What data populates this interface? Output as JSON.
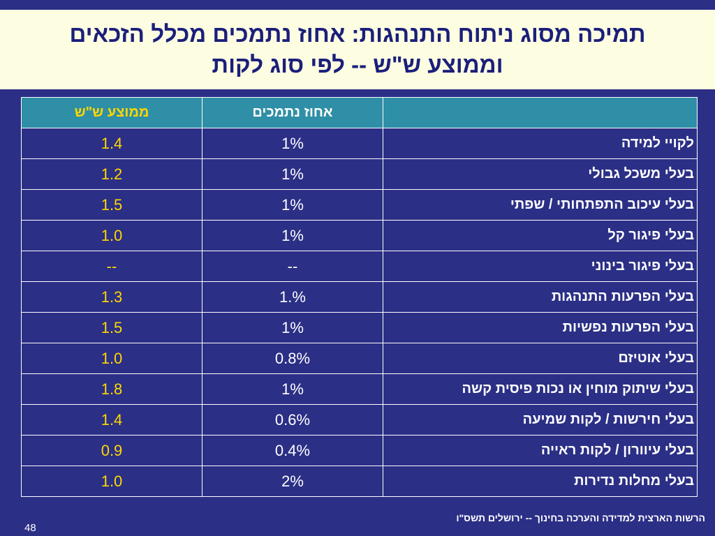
{
  "title": {
    "line1": "תמיכה מסוג ניתוח התנהגות: אחוז נתמכים מכלל הזכאים",
    "line2": "וממוצע ש\"ש -- לפי סוג לקות"
  },
  "table": {
    "headers": {
      "category": "",
      "percent": "אחוז נתמכים",
      "average": "ממוצע ש\"ש"
    },
    "rows": [
      {
        "category": "לקויי למידה",
        "percent": "1%",
        "average": "1.4"
      },
      {
        "category": "בעלי משכל גבולי",
        "percent": "1%",
        "average": "1.2"
      },
      {
        "category": "בעלי עיכוב התפתחותי / שפתי",
        "percent": "1%",
        "average": "1.5"
      },
      {
        "category": "בעלי פיגור קל",
        "percent": "1%",
        "average": "1.0"
      },
      {
        "category": "בעלי פיגור בינוני",
        "percent": "--",
        "average": "--"
      },
      {
        "category": "בעלי הפרעות התנהגות",
        "percent": "%.1",
        "average": "1.3"
      },
      {
        "category": "בעלי הפרעות נפשיות",
        "percent": "1%",
        "average": "1.5"
      },
      {
        "category": "בעלי אוטיזם",
        "percent": "0.8%",
        "average": "1.0"
      },
      {
        "category": "בעלי שיתוק מוחין או נכות פיסית קשה",
        "percent": "1%",
        "average": "1.8"
      },
      {
        "category": "בעלי חירשות / לקות שמיעה",
        "percent": "0.6%",
        "average": "1.4"
      },
      {
        "category": "בעלי עיוורון / לקות ראייה",
        "percent": "0.4%",
        "average": "0.9"
      },
      {
        "category": "בעלי מחלות נדירות",
        "percent": "2%",
        "average": "1.0"
      }
    ]
  },
  "footer": {
    "source": "הרשות הארצית למדידה והערכה בחינוך  -- ירושלים תשס\"ו",
    "page_number": "48"
  },
  "colors": {
    "background": "#2b2f86",
    "title_band": "#fdfde2",
    "title_text": "#1b1f7a",
    "header_fill": "#2f8fa6",
    "average_text": "#ffd700"
  }
}
